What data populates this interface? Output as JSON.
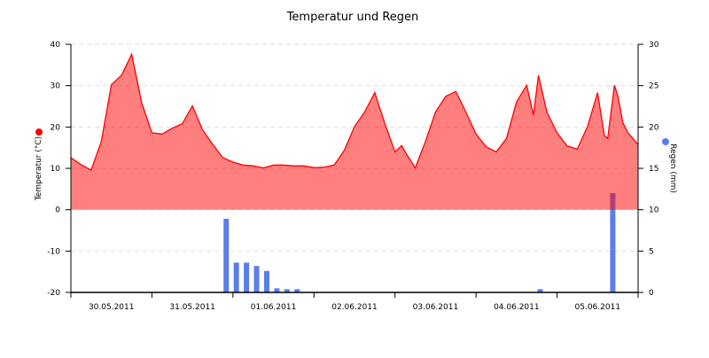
{
  "chart_data": {
    "type": "area+bar",
    "title": "Temperatur und Regen",
    "x_range": [
      "2011-05-30 00:00",
      "2011-06-06 00:00"
    ],
    "x_tick_labels": [
      "30.05.2011",
      "31.05.2011",
      "01.06.2011",
      "02.06.2011",
      "03.06.2011",
      "04.06.2011",
      "05.06.2011"
    ],
    "y_left": {
      "label": "Temperatur (°C)",
      "range": [
        -20,
        40
      ],
      "ticks": [
        -20,
        -10,
        0,
        10,
        20,
        30,
        40
      ]
    },
    "y_right": {
      "label": "Regen (mm)",
      "range": [
        0,
        30
      ],
      "ticks": [
        0,
        5,
        10,
        15,
        20,
        25,
        30
      ]
    },
    "grid": "horizontal dashed",
    "series": [
      {
        "name": "Temperatur (°C)",
        "type": "area",
        "axis": "left",
        "color": "#ff0000",
        "points": [
          [
            "2011-05-30 00:00",
            12.6
          ],
          [
            "2011-05-30 03:00",
            10.9
          ],
          [
            "2011-05-30 06:00",
            9.6
          ],
          [
            "2011-05-30 09:00",
            16.5
          ],
          [
            "2011-05-30 12:00",
            30.2
          ],
          [
            "2011-05-30 15:00",
            32.5
          ],
          [
            "2011-05-30 18:00",
            37.6
          ],
          [
            "2011-05-30 21:00",
            25.8
          ],
          [
            "2011-05-31 00:00",
            18.6
          ],
          [
            "2011-05-31 03:00",
            18.3
          ],
          [
            "2011-05-31 06:00",
            19.7
          ],
          [
            "2011-05-31 09:00",
            20.8
          ],
          [
            "2011-05-31 12:00",
            25.1
          ],
          [
            "2011-05-31 15:00",
            19.3
          ],
          [
            "2011-05-31 18:00",
            15.8
          ],
          [
            "2011-05-31 21:00",
            12.6
          ],
          [
            "2011-06-01 00:00",
            11.5
          ],
          [
            "2011-06-01 03:00",
            10.8
          ],
          [
            "2011-06-01 06:00",
            10.6
          ],
          [
            "2011-06-01 09:00",
            10.1
          ],
          [
            "2011-06-01 12:00",
            10.8
          ],
          [
            "2011-06-01 15:00",
            10.8
          ],
          [
            "2011-06-01 18:00",
            10.6
          ],
          [
            "2011-06-01 21:00",
            10.6
          ],
          [
            "2011-06-02 00:00",
            10.2
          ],
          [
            "2011-06-02 03:00",
            10.3
          ],
          [
            "2011-06-02 06:00",
            10.8
          ],
          [
            "2011-06-02 09:00",
            14.4
          ],
          [
            "2011-06-02 12:00",
            20.1
          ],
          [
            "2011-06-02 15:00",
            23.6
          ],
          [
            "2011-06-02 18:00",
            28.3
          ],
          [
            "2011-06-02 21:00",
            20.8
          ],
          [
            "2011-06-03 00:00",
            14.0
          ],
          [
            "2011-06-03 02:00",
            15.5
          ],
          [
            "2011-06-03 03:00",
            14.0
          ],
          [
            "2011-06-03 06:00",
            10.1
          ],
          [
            "2011-06-03 09:00",
            16.5
          ],
          [
            "2011-06-03 12:00",
            23.6
          ],
          [
            "2011-06-03 15:00",
            27.4
          ],
          [
            "2011-06-03 18:00",
            28.6
          ],
          [
            "2011-06-03 21:00",
            23.6
          ],
          [
            "2011-06-04 00:00",
            18.3
          ],
          [
            "2011-06-04 03:00",
            15.2
          ],
          [
            "2011-06-04 06:00",
            14.0
          ],
          [
            "2011-06-04 09:00",
            17.2
          ],
          [
            "2011-06-04 12:00",
            26.1
          ],
          [
            "2011-06-04 15:00",
            30.1
          ],
          [
            "2011-06-04 17:00",
            22.9
          ],
          [
            "2011-06-04 18:30",
            32.5
          ],
          [
            "2011-06-04 21:00",
            23.6
          ],
          [
            "2011-06-05 00:00",
            18.6
          ],
          [
            "2011-06-05 03:00",
            15.4
          ],
          [
            "2011-06-05 06:00",
            14.7
          ],
          [
            "2011-06-05 09:00",
            20.1
          ],
          [
            "2011-06-05 12:00",
            28.3
          ],
          [
            "2011-06-05 14:00",
            18.0
          ],
          [
            "2011-06-05 15:00",
            17.2
          ],
          [
            "2011-06-05 17:00",
            30.1
          ],
          [
            "2011-06-05 18:00",
            27.5
          ],
          [
            "2011-06-05 19:30",
            21.0
          ],
          [
            "2011-06-05 21:00",
            18.6
          ],
          [
            "2011-06-06 00:00",
            15.8
          ]
        ]
      },
      {
        "name": "Regen (mm)",
        "type": "bar",
        "axis": "right",
        "color": "#5b7fe8",
        "points": [
          [
            "2011-05-31 22:00",
            8.9
          ],
          [
            "2011-06-01 01:00",
            3.6
          ],
          [
            "2011-06-01 04:00",
            3.6
          ],
          [
            "2011-06-01 07:00",
            3.2
          ],
          [
            "2011-06-01 10:00",
            2.6
          ],
          [
            "2011-06-01 13:00",
            0.5
          ],
          [
            "2011-06-01 16:00",
            0.4
          ],
          [
            "2011-06-01 19:00",
            0.4
          ],
          [
            "2011-06-04 19:00",
            0.4
          ],
          [
            "2011-06-05 16:30",
            12.0
          ]
        ]
      }
    ]
  }
}
